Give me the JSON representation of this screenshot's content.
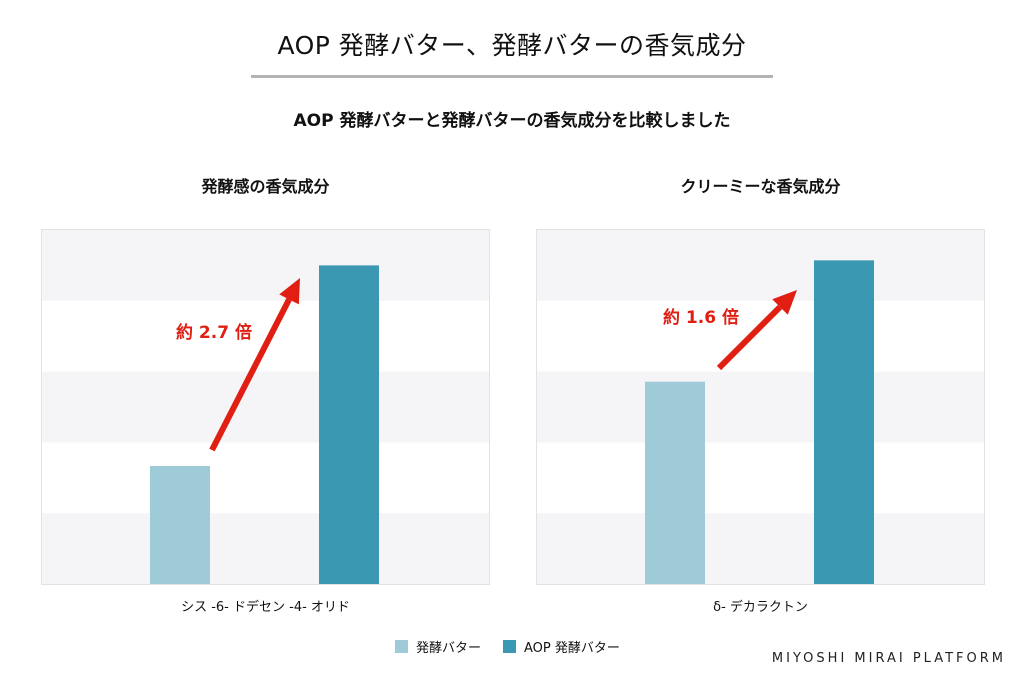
{
  "header": {
    "title": "AOP 発酵バター、発酵バターの香気成分",
    "subtitle": "AOP 発酵バターと発酵バターの香気成分を比較しました"
  },
  "legend": {
    "items": [
      {
        "label": "発酵バター",
        "color": "#9fcbd9"
      },
      {
        "label": "AOP 発酵バター",
        "color": "#3a98b2"
      }
    ]
  },
  "footer": {
    "brand": "MIYOSHI MIRAI PLATFORM"
  },
  "colors": {
    "series_light": "#9fcbd9",
    "series_dark": "#3a98b2",
    "arrow": "#e01e12",
    "band": "#f5f5f8"
  },
  "chart_data": [
    {
      "type": "bar",
      "title": "発酵感の香気成分",
      "categories": [
        "シス -6- ドデセン -4- オリド"
      ],
      "series": [
        {
          "name": "発酵バター",
          "values": [
            1.0
          ]
        },
        {
          "name": "AOP 発酵バター",
          "values": [
            2.7
          ]
        }
      ],
      "ylim": [
        0,
        3.0
      ],
      "grid": "horizontal bands",
      "annotation": "約 2.7 倍"
    },
    {
      "type": "bar",
      "title": "クリーミーな香気成分",
      "categories": [
        "δ- デカラクトン"
      ],
      "series": [
        {
          "name": "発酵バター",
          "values": [
            1.0
          ]
        },
        {
          "name": "AOP 発酵バター",
          "values": [
            1.6
          ]
        }
      ],
      "ylim": [
        0,
        1.75
      ],
      "grid": "horizontal bands",
      "annotation": "約 1.6 倍"
    }
  ]
}
